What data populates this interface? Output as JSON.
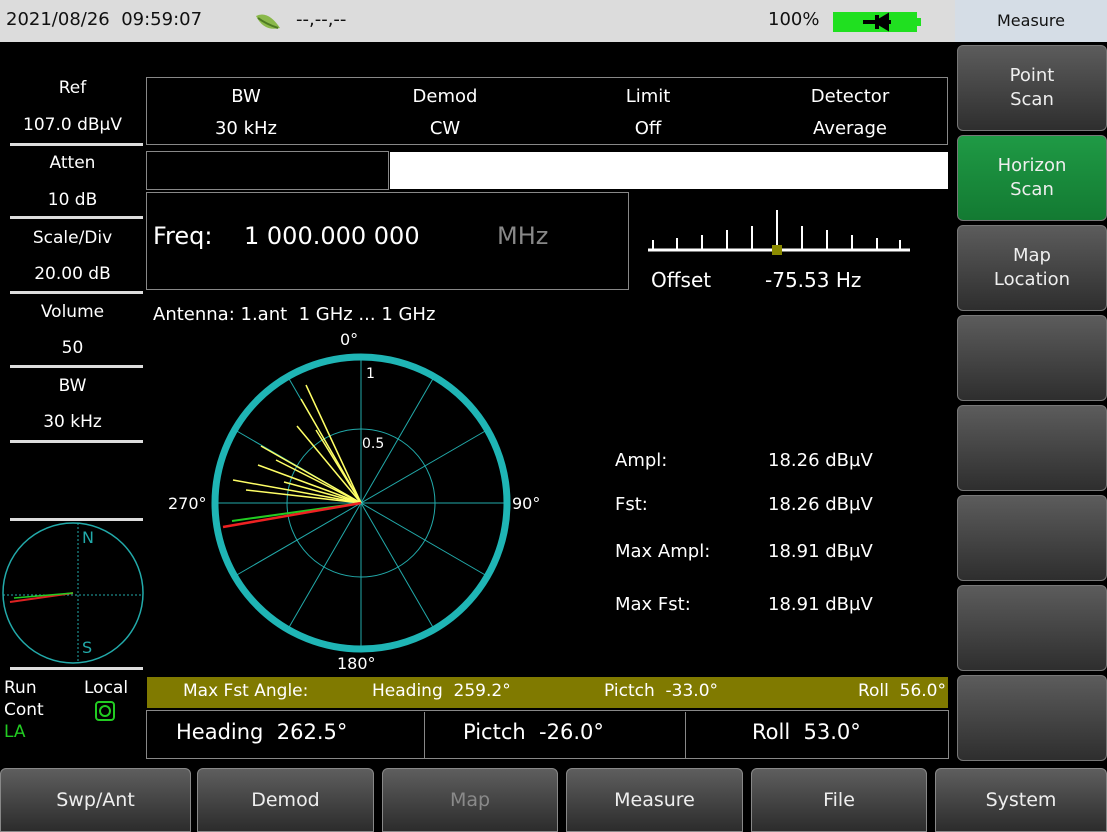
{
  "status_bar": {
    "datetime": "2021/08/26  09:59:07",
    "gps": "--,--,--",
    "battery": "100%"
  },
  "menu_title": "Measure",
  "left_panel": [
    {
      "label": "Ref",
      "value": "107.0 dBµV"
    },
    {
      "label": "Atten",
      "value": "10 dB"
    },
    {
      "label": "Scale/Div",
      "value": "20.00 dB"
    },
    {
      "label": "Volume",
      "value": "50"
    },
    {
      "label": "BW",
      "value": "30 kHz"
    }
  ],
  "compass": {
    "north": "N",
    "south": "S"
  },
  "status": {
    "run": "Run",
    "local": "Local",
    "cont": "Cont",
    "mode": "LA"
  },
  "settings": [
    {
      "label": "BW",
      "value": "30 kHz"
    },
    {
      "label": "Demod",
      "value": "CW"
    },
    {
      "label": "Limit",
      "value": "Off"
    },
    {
      "label": "Detector",
      "value": "Average"
    }
  ],
  "frequency": {
    "label": "Freq:",
    "value": "1 000.000 000",
    "unit": "MHz"
  },
  "offset": {
    "label": "Offset",
    "value": "-75.53 Hz"
  },
  "antenna": "Antenna: 1.ant  1 GHz ... 1 GHz",
  "polar": {
    "angles": [
      "0°",
      "90°",
      "180°",
      "270°"
    ],
    "radii": [
      "1",
      "0.5"
    ]
  },
  "readouts": [
    {
      "label": "Ampl:",
      "value": "18.26 dBµV"
    },
    {
      "label": "Fst:",
      "value": "18.26 dBµV"
    },
    {
      "label": "Max Ampl:",
      "value": "18.91 dBµV"
    },
    {
      "label": "Max Fst:",
      "value": "18.91 dBµV"
    }
  ],
  "max_fst_angle": {
    "label": "Max Fst Angle:",
    "heading": "Heading  259.2°",
    "pitch": "Pictch  -33.0°",
    "roll": "Roll  56.0°"
  },
  "orientation": {
    "heading": "Heading  262.5°",
    "pitch": "Pictch  -26.0°",
    "roll": "Roll  53.0°"
  },
  "softkeys": [
    "Point Scan",
    "Horizon Scan",
    "Map Location"
  ],
  "bottom_menu": [
    "Swp/Ant",
    "Demod",
    "Map",
    "Measure",
    "File",
    "System"
  ]
}
